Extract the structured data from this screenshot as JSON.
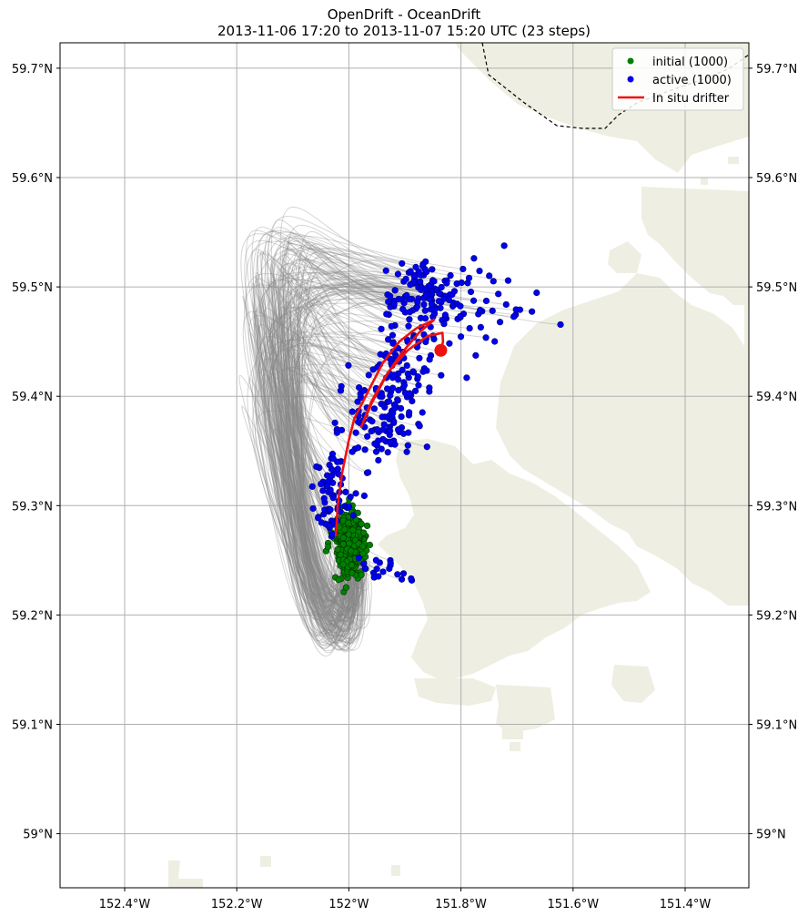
{
  "title_line1": "OpenDrift - OceanDrift",
  "title_line2": "2013-11-06 17:20 to 2013-11-07 15:20 UTC (23 steps)",
  "map": {
    "lon_range": [
      -152.52,
      -151.28
    ],
    "lat_range": [
      58.95,
      59.72
    ],
    "lon_ticks": [
      {
        "value": -152.4,
        "label": "152.4°W"
      },
      {
        "value": -152.2,
        "label": "152.2°W"
      },
      {
        "value": -152.0,
        "label": "152°W"
      },
      {
        "value": -151.8,
        "label": "151.8°W"
      },
      {
        "value": -151.6,
        "label": "151.6°W"
      },
      {
        "value": -151.4,
        "label": "151.4°W"
      }
    ],
    "lat_ticks": [
      {
        "value": 59.7,
        "label": "59.7°N"
      },
      {
        "value": 59.6,
        "label": "59.6°N"
      },
      {
        "value": 59.5,
        "label": "59.5°N"
      },
      {
        "value": 59.4,
        "label": "59.4°N"
      },
      {
        "value": 59.3,
        "label": "59.3°N"
      },
      {
        "value": 59.2,
        "label": "59.2°N"
      },
      {
        "value": 59.1,
        "label": "59.1°N"
      },
      {
        "value": 59.0,
        "label": "59°N"
      }
    ],
    "grid": true,
    "land_color": "#eeeee2",
    "initial_color": "#008000",
    "active_color": "#0000ee",
    "trajectory_color": "#888888",
    "drifter_color": "#ee1111"
  },
  "legend": {
    "placement": "top-right",
    "items": [
      {
        "label": "initial (1000)",
        "marker": "dot",
        "color": "#008000"
      },
      {
        "label": "active (1000)",
        "marker": "dot",
        "color": "#0000ee"
      },
      {
        "label": "In situ drifter",
        "marker": "line",
        "color": "#ee1111"
      }
    ]
  },
  "drifter": {
    "track": [
      [
        -152.023,
        59.272
      ],
      [
        -152.02,
        59.3
      ],
      [
        -152.012,
        59.33
      ],
      [
        -152.0,
        59.36
      ],
      [
        -151.99,
        59.38
      ],
      [
        -151.965,
        59.405
      ],
      [
        -151.94,
        59.43
      ],
      [
        -151.91,
        59.45
      ],
      [
        -151.88,
        59.462
      ],
      [
        -151.848,
        59.47
      ],
      [
        -151.875,
        59.458
      ],
      [
        -151.905,
        59.44
      ],
      [
        -151.935,
        59.418
      ],
      [
        -151.96,
        59.395
      ],
      [
        -151.978,
        59.372
      ],
      [
        -151.958,
        59.395
      ],
      [
        -151.93,
        59.422
      ],
      [
        -151.895,
        59.442
      ],
      [
        -151.86,
        59.455
      ],
      [
        -151.833,
        59.458
      ],
      [
        -151.832,
        59.45
      ],
      [
        -151.836,
        59.442
      ]
    ],
    "final_position": [
      -151.836,
      59.442
    ]
  }
}
